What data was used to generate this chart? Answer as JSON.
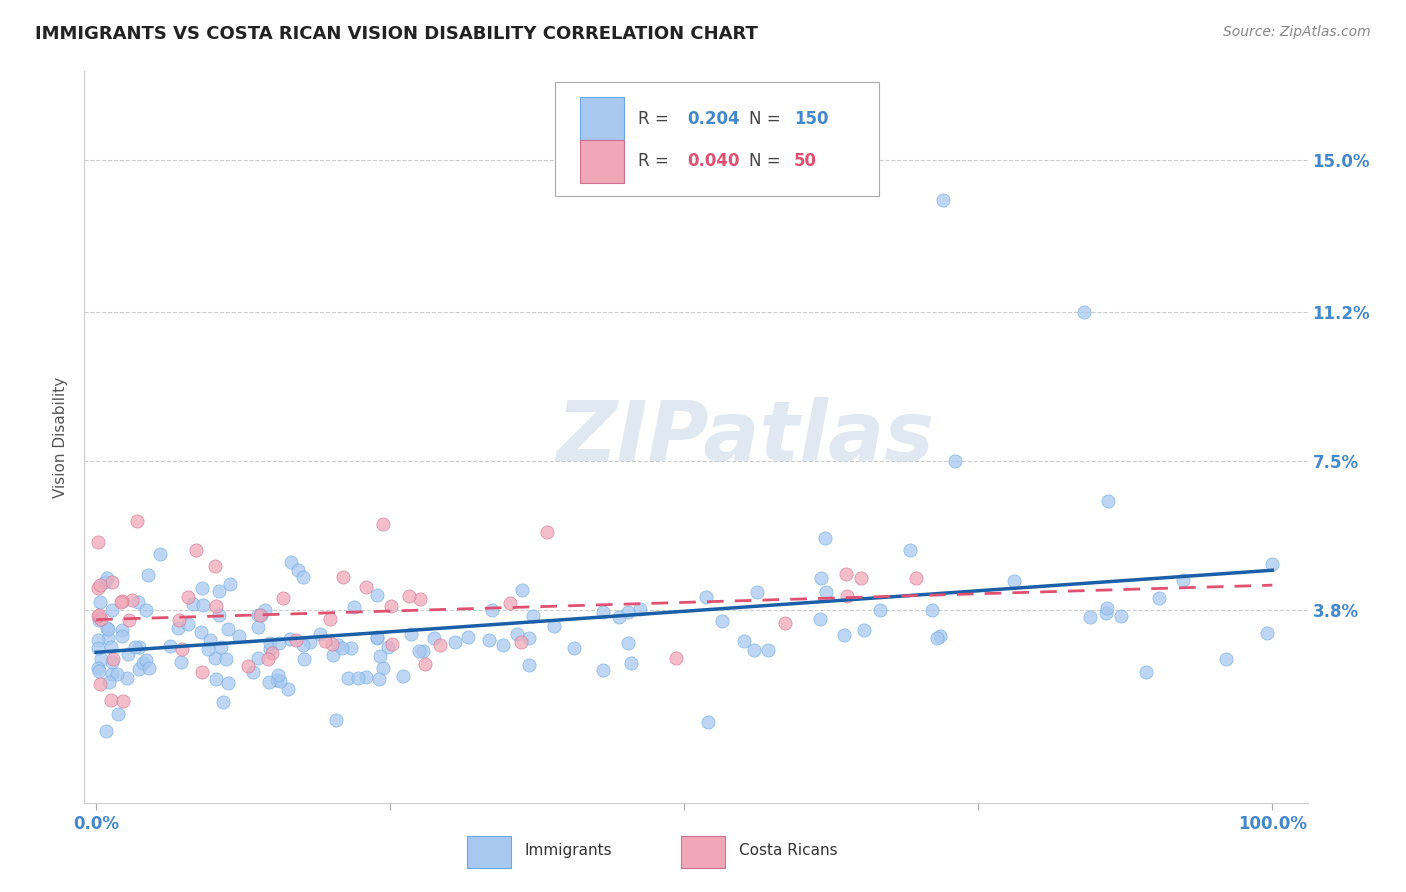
{
  "title": "IMMIGRANTS VS COSTA RICAN VISION DISABILITY CORRELATION CHART",
  "source_text": "Source: ZipAtlas.com",
  "ylabel": "Vision Disability",
  "watermark": "ZIPatlas",
  "legend_immigrants": "Immigrants",
  "legend_costa_ricans": "Costa Ricans",
  "R_immigrants": 0.204,
  "N_immigrants": 150,
  "R_costa_ricans": 0.04,
  "N_costa_ricans": 50,
  "yticks": [
    0.038,
    0.075,
    0.112,
    0.15
  ],
  "ytick_labels": [
    "3.8%",
    "7.5%",
    "11.2%",
    "15.0%"
  ],
  "color_immigrants": "#a8c8f0",
  "color_immigrants_edge": "#6aaae0",
  "color_costa_ricans": "#f0a8b8",
  "color_costa_ricans_edge": "#d07090",
  "color_immigrants_line": "#1a5fa8",
  "color_costa_ricans_line": "#e05070",
  "title_color": "#222222",
  "axis_label_color": "#555555",
  "tick_label_color": "#4488cc",
  "background_color": "#ffffff",
  "grid_color": "#cccccc",
  "title_fontsize": 13,
  "source_fontsize": 10,
  "axis_label_fontsize": 11,
  "tick_fontsize": 12,
  "legend_fontsize": 12,
  "watermark_fontsize": 60,
  "seed": 123
}
